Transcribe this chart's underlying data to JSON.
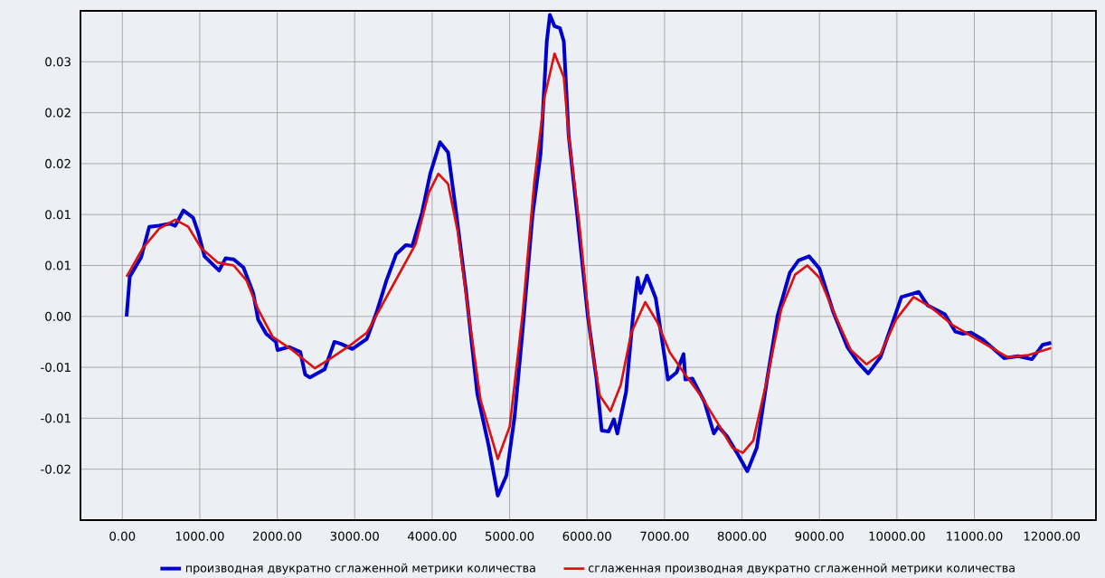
{
  "chart_data": {
    "type": "line",
    "xlim": [
      -540,
      12570
    ],
    "ylim": [
      -0.02,
      0.03
    ],
    "xticks": [
      {
        "value": 0,
        "label": "0.00"
      },
      {
        "value": 1000,
        "label": "1000.00"
      },
      {
        "value": 2000,
        "label": "2000.00"
      },
      {
        "value": 3000,
        "label": "3000.00"
      },
      {
        "value": 4000,
        "label": "4000.00"
      },
      {
        "value": 5000,
        "label": "5000.00"
      },
      {
        "value": 6000,
        "label": "6000.00"
      },
      {
        "value": 7000,
        "label": "7000.00"
      },
      {
        "value": 8000,
        "label": "8000.00"
      },
      {
        "value": 9000,
        "label": "9000.00"
      },
      {
        "value": 10000,
        "label": "10000.00"
      },
      {
        "value": 11000,
        "label": "11000.00"
      },
      {
        "value": 12000,
        "label": "12000.00"
      }
    ],
    "yticks": [
      {
        "value": -0.015,
        "label": "-0.02"
      },
      {
        "value": -0.01,
        "label": "-0.01"
      },
      {
        "value": -0.005,
        "label": "-0.01"
      },
      {
        "value": 0,
        "label": "0.00"
      },
      {
        "value": 0.005,
        "label": "0.01"
      },
      {
        "value": 0.01,
        "label": "0.01"
      },
      {
        "value": 0.015,
        "label": "0.02"
      },
      {
        "value": 0.02,
        "label": "0.02"
      },
      {
        "value": 0.025,
        "label": "0.03"
      }
    ],
    "grid": true,
    "legend": "bottom",
    "marker": "none",
    "line_style": "solid",
    "series": [
      {
        "name": "производная двукратно сглаженной метрики количества",
        "color": "#0000cc",
        "x": [
          55,
          96,
          243,
          348,
          474,
          620,
          683,
          788,
          914,
          977,
          1061,
          1249,
          1333,
          1438,
          1564,
          1690,
          1753,
          1857,
          1983,
          2004,
          2151,
          2298,
          2361,
          2423,
          2612,
          2738,
          2822,
          2969,
          3157,
          3283,
          3409,
          3535,
          3660,
          3744,
          3870,
          3975,
          4101,
          4206,
          4310,
          4436,
          4583,
          4730,
          4847,
          4960,
          5065,
          5170,
          5296,
          5400,
          5480,
          5520,
          5580,
          5650,
          5700,
          5762,
          5874,
          6009,
          6121,
          6189,
          6279,
          6346,
          6391,
          6504,
          6594,
          6652,
          6693,
          6774,
          6886,
          6976,
          7044,
          7156,
          7246,
          7269,
          7359,
          7516,
          7637,
          7696,
          7808,
          7943,
          8069,
          8191,
          8326,
          8461,
          8618,
          8731,
          8866,
          9000,
          9180,
          9360,
          9495,
          9630,
          9788,
          9945,
          10058,
          10148,
          10283,
          10395,
          10620,
          10755,
          10845,
          10957,
          11115,
          11385,
          11565,
          11744,
          11880,
          11992
        ],
        "values": [
          0.0,
          0.0039,
          0.0058,
          0.0088,
          0.0089,
          0.0091,
          0.0089,
          0.0104,
          0.0097,
          0.0083,
          0.0059,
          0.0045,
          0.0057,
          0.0056,
          0.0048,
          0.0023,
          -0.0003,
          -0.0017,
          -0.0025,
          -0.0033,
          -0.003,
          -0.0035,
          -0.0057,
          -0.006,
          -0.0052,
          -0.0025,
          -0.0027,
          -0.0032,
          -0.0022,
          0.0004,
          0.0035,
          0.0061,
          0.007,
          0.0069,
          0.0102,
          0.014,
          0.0171,
          0.0161,
          0.0102,
          0.0026,
          -0.0076,
          -0.0127,
          -0.0176,
          -0.0156,
          -0.0098,
          -0.0012,
          0.0099,
          0.016,
          0.027,
          0.0296,
          0.0285,
          0.0283,
          0.027,
          0.0178,
          0.0099,
          0.0001,
          -0.0061,
          -0.0112,
          -0.0113,
          -0.0101,
          -0.0115,
          -0.0074,
          0.0001,
          0.0038,
          0.0023,
          0.004,
          0.0018,
          -0.0027,
          -0.0062,
          -0.0055,
          -0.0037,
          -0.0062,
          -0.0061,
          -0.0084,
          -0.0115,
          -0.0108,
          -0.0118,
          -0.0135,
          -0.0152,
          -0.0129,
          -0.0061,
          0.0001,
          0.0043,
          0.0055,
          0.0059,
          0.0047,
          0.0004,
          -0.003,
          -0.0045,
          -0.0056,
          -0.004,
          -0.0006,
          0.0019,
          0.0021,
          0.0024,
          0.0011,
          0.0002,
          -0.0015,
          -0.0017,
          -0.0016,
          -0.0023,
          -0.0041,
          -0.0039,
          -0.0042,
          -0.0028,
          -0.0026
        ]
      },
      {
        "name": "сглаженная производная двукратно сглаженной метрики количества",
        "color": "#dd1111",
        "x": [
          55,
          264,
          474,
          683,
          851,
          1019,
          1228,
          1438,
          1606,
          1753,
          1941,
          2193,
          2487,
          2696,
          2948,
          3157,
          3367,
          3577,
          3786,
          3954,
          4080,
          4206,
          4331,
          4457,
          4625,
          4847,
          5002,
          5170,
          5317,
          5450,
          5580,
          5700,
          5762,
          5897,
          6054,
          6166,
          6301,
          6436,
          6571,
          6751,
          6909,
          7066,
          7246,
          7471,
          7696,
          7876,
          8011,
          8146,
          8326,
          8506,
          8686,
          8843,
          9000,
          9225,
          9405,
          9608,
          9788,
          9990,
          10215,
          10440,
          10710,
          10980,
          11205,
          11430,
          11700,
          11992
        ],
        "values": [
          0.0039,
          0.0067,
          0.0086,
          0.0095,
          0.0088,
          0.0067,
          0.0053,
          0.005,
          0.0035,
          0.0007,
          -0.002,
          -0.0033,
          -0.0051,
          -0.0041,
          -0.0028,
          -0.0016,
          0.0013,
          0.0042,
          0.0071,
          0.0121,
          0.014,
          0.013,
          0.0083,
          0.001,
          -0.0082,
          -0.014,
          -0.0108,
          0.0004,
          0.0131,
          0.0215,
          0.0258,
          0.0235,
          0.0178,
          0.0093,
          -0.0027,
          -0.0078,
          -0.0093,
          -0.0067,
          -0.0016,
          0.0014,
          -0.0006,
          -0.0035,
          -0.0055,
          -0.0078,
          -0.0106,
          -0.0129,
          -0.0134,
          -0.0122,
          -0.0061,
          0.0007,
          0.0041,
          0.005,
          0.0038,
          -0.0003,
          -0.0033,
          -0.0047,
          -0.0037,
          -0.0003,
          0.0019,
          0.0009,
          -0.0008,
          -0.002,
          -0.003,
          -0.004,
          -0.0038,
          -0.0031
        ]
      }
    ]
  }
}
